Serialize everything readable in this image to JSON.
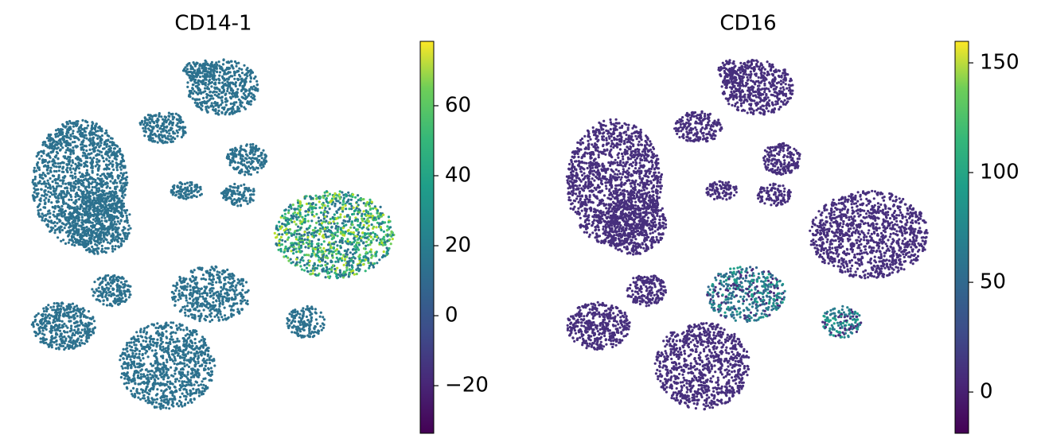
{
  "chart_data": [
    {
      "type": "scatter",
      "title": "CD14-1",
      "color": "#2c718e",
      "colormap": "viridis",
      "clim": [
        -33.6,
        78.4
      ],
      "cticks": [
        {
          "value": -20,
          "label": "−20"
        },
        0,
        20,
        40,
        60
      ]
    },
    {
      "type": "scatter",
      "title": "CD16",
      "color": "#472f7d",
      "colormap": "viridis",
      "clim": [
        -18.8,
        159.8
      ],
      "cticks": [
        0,
        50,
        100,
        150
      ]
    }
  ]
}
